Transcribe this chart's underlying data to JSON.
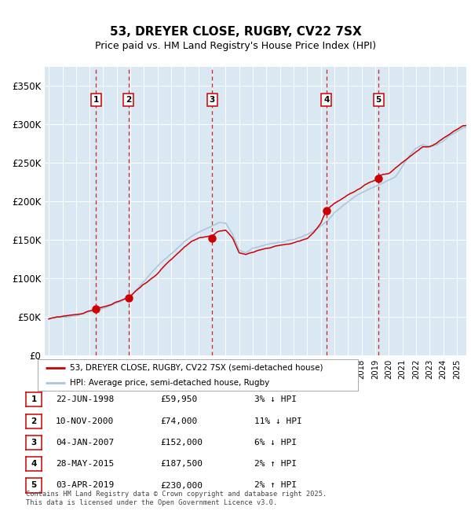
{
  "title": "53, DREYER CLOSE, RUGBY, CV22 7SX",
  "subtitle": "Price paid vs. HM Land Registry's House Price Index (HPI)",
  "footer": "Contains HM Land Registry data © Crown copyright and database right 2025.\nThis data is licensed under the Open Government Licence v3.0.",
  "legend_line1": "53, DREYER CLOSE, RUGBY, CV22 7SX (semi-detached house)",
  "legend_line2": "HPI: Average price, semi-detached house, Rugby",
  "sales": [
    {
      "label": "1",
      "date": "22-JUN-1998",
      "price": 59950,
      "price_str": "£59,950",
      "pct": "3%",
      "dir": "↓",
      "year_x": 1998.47
    },
    {
      "label": "2",
      "date": "10-NOV-2000",
      "price": 74000,
      "price_str": "£74,000",
      "pct": "11%",
      "dir": "↓",
      "year_x": 2000.86
    },
    {
      "label": "3",
      "date": "04-JAN-2007",
      "price": 152000,
      "price_str": "£152,000",
      "pct": "6%",
      "dir": "↓",
      "year_x": 2007.01
    },
    {
      "label": "4",
      "date": "28-MAY-2015",
      "price": 187500,
      "price_str": "£187,500",
      "pct": "2%",
      "dir": "↑",
      "year_x": 2015.41
    },
    {
      "label": "5",
      "date": "03-APR-2019",
      "price": 230000,
      "price_str": "£230,000",
      "pct": "2%",
      "dir": "↑",
      "year_x": 2019.25
    }
  ],
  "ylim": [
    0,
    375000
  ],
  "yticks": [
    0,
    50000,
    100000,
    150000,
    200000,
    250000,
    300000,
    350000
  ],
  "ytick_labels": [
    "£0",
    "£50K",
    "£100K",
    "£150K",
    "£200K",
    "£250K",
    "£300K",
    "£350K"
  ],
  "xlim_start": 1994.7,
  "xlim_end": 2025.7,
  "hpi_color": "#aac4de",
  "price_color": "#cc0000",
  "dot_color": "#cc0000",
  "vline_color": "#cc0000",
  "bg_color": "#d9e8f2",
  "grid_color": "#ffffff",
  "box_color": "#cc0000",
  "fig_bg": "#ffffff"
}
